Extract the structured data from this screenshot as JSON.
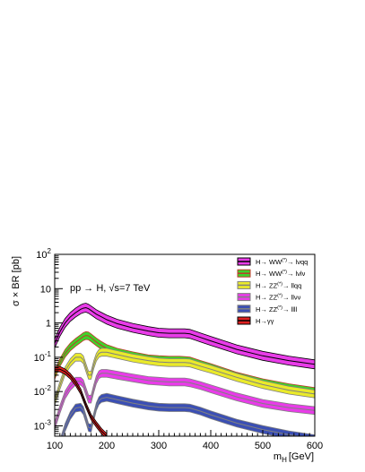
{
  "chart_data": {
    "type": "line",
    "ylabel": "σ × BR [pb]",
    "xlabel_main": "m",
    "xlabel_sub": "H",
    "xlabel_unit": "[GeV]",
    "annotation": "pp → H, √s=7 TeV",
    "xlim": [
      100,
      600
    ],
    "ylim": [
      0.0005,
      100
    ],
    "y_scale": "log",
    "grid": false,
    "legend_position": "top-right",
    "x_ticks": [
      100,
      200,
      300,
      400,
      500,
      600
    ],
    "y_ticks": [
      {
        "value": 0.001,
        "base": "10",
        "exp": "-3"
      },
      {
        "value": 0.01,
        "base": "10",
        "exp": "-2"
      },
      {
        "value": 0.1,
        "base": "10",
        "exp": "-1"
      },
      {
        "value": 1,
        "base": "1",
        "exp": ""
      },
      {
        "value": 10,
        "base": "10",
        "exp": ""
      },
      {
        "value": 100,
        "base": "10",
        "exp": "2"
      }
    ],
    "series": [
      {
        "name": "H→ WW(*)→ lνqq",
        "legend_main": "H→ WW",
        "legend_sup": "(*)",
        "legend_tail": "→ lνqq",
        "fill": "#e83ce8",
        "line": "#000000",
        "band": 1.35,
        "x": [
          100,
          110,
          120,
          130,
          140,
          150,
          155,
          160,
          165,
          170,
          180,
          190,
          200,
          220,
          250,
          280,
          300,
          320,
          340,
          350,
          360,
          380,
          400,
          450,
          500,
          550,
          600
        ],
        "y": [
          0.25,
          0.55,
          1.0,
          1.5,
          2.0,
          2.5,
          2.7,
          2.8,
          2.6,
          2.3,
          1.8,
          1.5,
          1.25,
          0.95,
          0.72,
          0.58,
          0.52,
          0.5,
          0.5,
          0.5,
          0.48,
          0.38,
          0.3,
          0.17,
          0.11,
          0.08,
          0.062
        ]
      },
      {
        "name": "H→ WW(*)→ lνlν",
        "legend_main": "H→ WW",
        "legend_sup": "(*)",
        "legend_tail": "→ lνlν",
        "fill": "#3fd22b",
        "line": "#c0392b",
        "band": 1.3,
        "x": [
          100,
          110,
          120,
          130,
          140,
          150,
          155,
          160,
          165,
          170,
          180,
          190,
          200,
          220,
          250,
          280,
          300,
          320,
          340,
          350,
          360,
          380,
          400,
          450,
          500,
          550,
          600
        ],
        "y": [
          0.03,
          0.07,
          0.13,
          0.2,
          0.27,
          0.35,
          0.4,
          0.43,
          0.42,
          0.37,
          0.28,
          0.22,
          0.18,
          0.14,
          0.11,
          0.09,
          0.085,
          0.082,
          0.082,
          0.08,
          0.078,
          0.062,
          0.05,
          0.028,
          0.018,
          0.013,
          0.01
        ]
      },
      {
        "name": "H→ ZZ(*)→ llqq",
        "legend_main": "H→ ZZ",
        "legend_sup": "(*)",
        "legend_tail": "→ llqq",
        "fill": "#eaea2a",
        "line": "#808080",
        "band": 1.3,
        "x": [
          100,
          110,
          120,
          130,
          140,
          150,
          155,
          160,
          165,
          170,
          175,
          180,
          185,
          190,
          200,
          220,
          250,
          280,
          300,
          320,
          340,
          350,
          360,
          380,
          400,
          450,
          500,
          550,
          600
        ],
        "y": [
          0.005,
          0.015,
          0.04,
          0.07,
          0.1,
          0.1,
          0.085,
          0.05,
          0.03,
          0.03,
          0.06,
          0.1,
          0.13,
          0.14,
          0.14,
          0.12,
          0.095,
          0.08,
          0.073,
          0.07,
          0.07,
          0.07,
          0.068,
          0.055,
          0.045,
          0.026,
          0.016,
          0.011,
          0.0085
        ]
      },
      {
        "name": "H→ ZZ(*)→ llνν",
        "legend_main": "H→ ZZ",
        "legend_sup": "(*)",
        "legend_tail": "→ llνν",
        "fill": "#e83ce8",
        "line": "#808080",
        "band": 1.3,
        "x": [
          100,
          110,
          120,
          130,
          140,
          150,
          155,
          160,
          165,
          170,
          175,
          180,
          185,
          190,
          200,
          220,
          250,
          280,
          300,
          320,
          340,
          350,
          360,
          380,
          400,
          450,
          500,
          550,
          600
        ],
        "y": [
          0.001,
          0.003,
          0.008,
          0.014,
          0.02,
          0.02,
          0.017,
          0.01,
          0.006,
          0.006,
          0.012,
          0.022,
          0.031,
          0.034,
          0.034,
          0.03,
          0.025,
          0.021,
          0.02,
          0.019,
          0.019,
          0.019,
          0.018,
          0.015,
          0.012,
          0.007,
          0.0045,
          0.0034,
          0.0028
        ]
      },
      {
        "name": "H→ ZZ(*)→ llll",
        "legend_main": "H→ ZZ",
        "legend_sup": "(*)",
        "legend_tail": "→ llll",
        "fill": "#3b4fb4",
        "line": "#808080",
        "band": 1.3,
        "x": [
          110,
          120,
          130,
          140,
          150,
          155,
          160,
          165,
          170,
          175,
          180,
          185,
          190,
          200,
          220,
          250,
          280,
          300,
          320,
          340,
          350,
          360,
          380,
          400,
          450,
          500,
          550,
          600
        ],
        "y": [
          0.0003,
          0.0009,
          0.002,
          0.0033,
          0.0035,
          0.0028,
          0.0016,
          0.0009,
          0.00085,
          0.0018,
          0.0036,
          0.0054,
          0.0063,
          0.0068,
          0.0058,
          0.0046,
          0.0038,
          0.0035,
          0.0034,
          0.0034,
          0.0034,
          0.0033,
          0.0027,
          0.0021,
          0.0012,
          0.00078,
          0.00055,
          0.00042
        ]
      },
      {
        "name": "H→γγ",
        "legend_main": "H→γγ",
        "legend_sup": "",
        "legend_tail": "",
        "fill": "#e02020",
        "line": "#000000",
        "band": 1.2,
        "x": [
          100,
          110,
          120,
          130,
          140,
          150,
          160,
          170,
          180,
          190,
          200
        ],
        "y": [
          0.045,
          0.045,
          0.038,
          0.028,
          0.018,
          0.01,
          0.004,
          0.0018,
          0.0011,
          0.0007,
          0.0005
        ]
      }
    ]
  }
}
